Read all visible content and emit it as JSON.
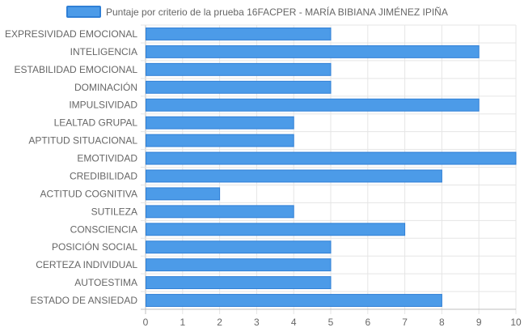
{
  "chart_data": {
    "type": "bar",
    "orientation": "horizontal",
    "title": "",
    "xlabel": "",
    "ylabel": "",
    "legend_position": "top-center",
    "grid": true,
    "xlim": [
      0,
      10
    ],
    "x_ticks": [
      "0",
      "1",
      "2",
      "3",
      "4",
      "5",
      "6",
      "7",
      "8",
      "9",
      "10"
    ],
    "categories": [
      "EXPRESIVIDAD EMOCIONAL",
      "INTELIGENCIA",
      "ESTABILIDAD EMOCIONAL",
      "DOMINACIÓN",
      "IMPULSIVIDAD",
      "LEALTAD GRUPAL",
      "APTITUD SITUACIONAL",
      "EMOTIVIDAD",
      "CREDIBILIDAD",
      "ACTITUD COGNITIVA",
      "SUTILEZA",
      "CONSCIENCIA",
      "POSICIÓN SOCIAL",
      "CERTEZA INDIVIDUAL",
      "AUTOESTIMA",
      "ESTADO DE ANSIEDAD"
    ],
    "series": [
      {
        "name": "Puntaje por criterio de la prueba 16FACPER - MARÍA BIBIANA JIMÉNEZ IPIÑA",
        "color": "#4c9be8",
        "border_color": "#2f7fd6",
        "values": [
          5,
          9,
          5,
          5,
          9,
          4,
          4,
          10,
          8,
          2,
          4,
          7,
          5,
          5,
          5,
          8
        ]
      }
    ]
  }
}
